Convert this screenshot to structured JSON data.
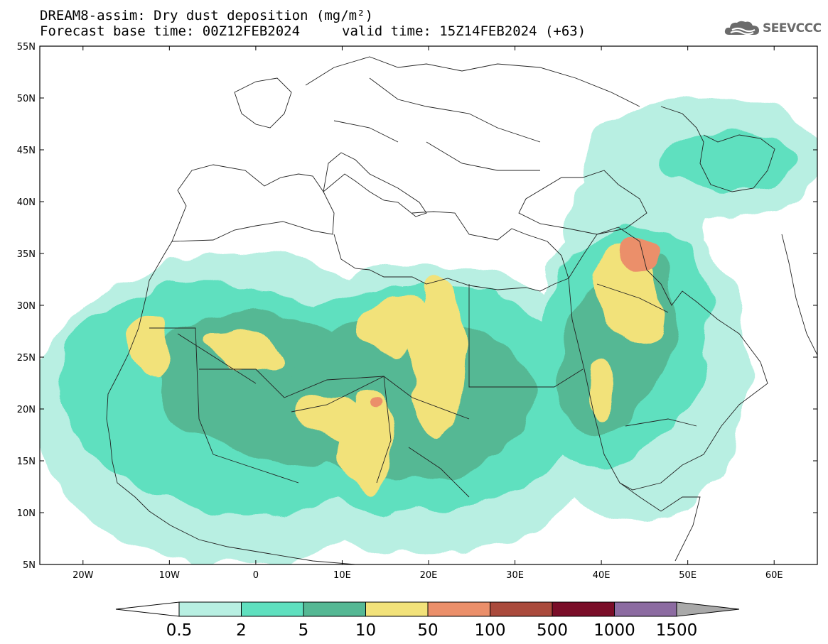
{
  "header": {
    "title": "DREAM8-assim: Dry dust deposition (mg/m²)",
    "base_time": "Forecast base time: 00Z12FEB2024",
    "valid_time": "valid time: 15Z14FEB2024 (+63)"
  },
  "logo": {
    "text": "SEEVCCC",
    "icon": "cloud-icon"
  },
  "map": {
    "lon_range": [
      -25,
      65
    ],
    "lat_range": [
      5,
      55
    ],
    "lat_labels": [
      "55N",
      "50N",
      "45N",
      "40N",
      "35N",
      "30N",
      "25N",
      "20N",
      "15N",
      "10N",
      "5N"
    ],
    "lat_values": [
      55,
      50,
      45,
      40,
      35,
      30,
      25,
      20,
      15,
      10,
      5
    ],
    "lon_labels": [
      "20W",
      "10W",
      "0",
      "10E",
      "20E",
      "30E",
      "40E",
      "50E",
      "60E"
    ],
    "lon_values": [
      -20,
      -10,
      0,
      10,
      20,
      30,
      40,
      50,
      60
    ],
    "fields": [
      {
        "level": 0,
        "lon": -2,
        "lat": 20,
        "rlon": 24,
        "rlat": 15,
        "rot": 0
      },
      {
        "level": 0,
        "lon": 20,
        "lat": 20,
        "rlon": 22,
        "rlat": 14,
        "rot": 0
      },
      {
        "level": 0,
        "lon": 44,
        "lat": 24,
        "rlon": 13,
        "rlat": 15,
        "rot": 0
      },
      {
        "level": 0,
        "lon": 52,
        "lat": 44,
        "rlon": 14,
        "rlat": 6,
        "rot": 0
      },
      {
        "level": 0,
        "lon": 44,
        "lat": 38,
        "rlon": 8,
        "rlat": 6,
        "rot": 0
      },
      {
        "level": 1,
        "lon": -3,
        "lat": 21,
        "rlon": 20,
        "rlat": 11,
        "rot": 10
      },
      {
        "level": 1,
        "lon": 18,
        "lat": 21,
        "rlon": 20,
        "rlat": 11,
        "rot": 0
      },
      {
        "level": 1,
        "lon": 42,
        "lat": 26,
        "rlon": 10,
        "rlat": 12,
        "rot": 20
      },
      {
        "level": 1,
        "lon": 55,
        "lat": 44,
        "rlon": 8,
        "rlat": 3,
        "rot": 0
      },
      {
        "level": 2,
        "lon": 2,
        "lat": 22,
        "rlon": 14,
        "rlat": 7,
        "rot": 15
      },
      {
        "level": 2,
        "lon": 18,
        "lat": 21,
        "rlon": 14,
        "rlat": 8,
        "rot": 0
      },
      {
        "level": 2,
        "lon": 42,
        "lat": 26,
        "rlon": 6,
        "rlat": 9,
        "rot": 20
      },
      {
        "level": 3,
        "lon": -12,
        "lat": 26,
        "rlon": 2.5,
        "rlat": 3,
        "rot": 0
      },
      {
        "level": 3,
        "lon": -1,
        "lat": 25.5,
        "rlon": 5,
        "rlat": 1.8,
        "rot": 25
      },
      {
        "level": 3,
        "lon": 10,
        "lat": 19,
        "rlon": 6,
        "rlat": 2,
        "rot": 15
      },
      {
        "level": 3,
        "lon": 13,
        "lat": 17,
        "rlon": 3,
        "rlat": 5,
        "rot": 0
      },
      {
        "level": 3,
        "lon": 16,
        "lat": 28,
        "rlon": 4,
        "rlat": 3,
        "rot": 0
      },
      {
        "level": 3,
        "lon": 21,
        "lat": 25,
        "rlon": 3,
        "rlat": 8,
        "rot": 0
      },
      {
        "level": 3,
        "lon": 43,
        "lat": 31,
        "rlon": 3.5,
        "rlat": 5,
        "rot": -25
      },
      {
        "level": 3,
        "lon": 40,
        "lat": 22,
        "rlon": 1.5,
        "rlat": 3,
        "rot": 0
      },
      {
        "level": 4,
        "lon": 14,
        "lat": 20.3,
        "rlon": 0.8,
        "rlat": 0.6,
        "rot": 0
      },
      {
        "level": 4,
        "lon": 44,
        "lat": 35,
        "rlon": 2.2,
        "rlat": 1.6,
        "rot": -30
      }
    ]
  },
  "colorbar": {
    "labels": [
      "0.5",
      "2",
      "5",
      "10",
      "50",
      "100",
      "500",
      "1000",
      "1500"
    ],
    "colors": [
      "#b8efe2",
      "#5fe0bf",
      "#55b894",
      "#f2e27a",
      "#eb8f6a",
      "#aa4a3c",
      "#7a0d28",
      "#8c6ba1"
    ],
    "under_color": "#ffffff",
    "over_color": "#a9a9a9"
  }
}
